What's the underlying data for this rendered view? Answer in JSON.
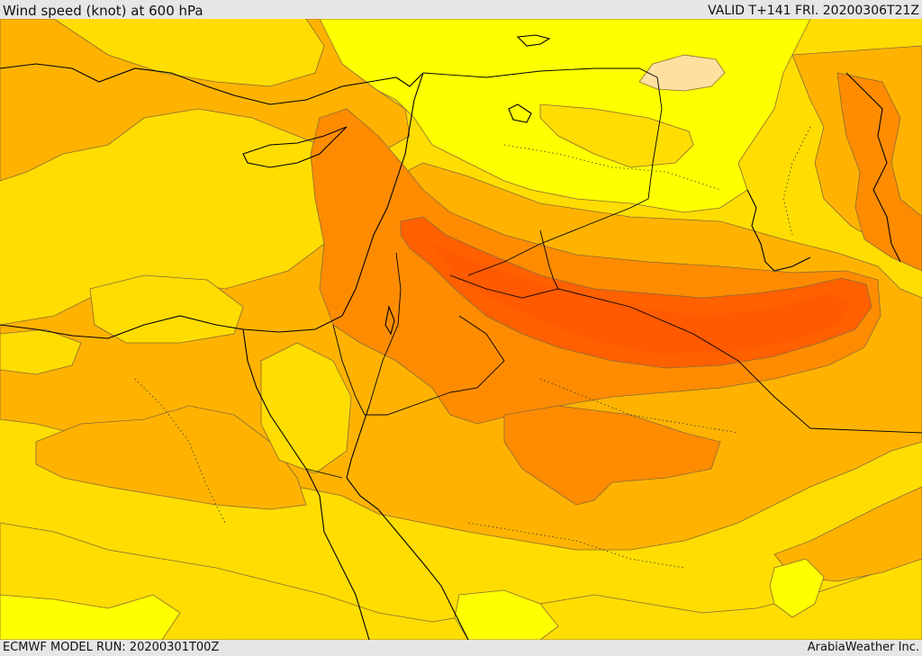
{
  "header": {
    "title": "Wind speed (knot) at 600 hPa",
    "valid": "VALID T+141 FRI. 20200306T21Z"
  },
  "footer": {
    "model_run": "ECMWF MODEL RUN: 20200301T00Z",
    "credit": "ArabiaWeather Inc."
  },
  "map": {
    "variable": "wind speed",
    "unit": "knot",
    "level": "600 hPa",
    "palette": {
      "very_low": "#ffe0a0",
      "low": "#ffff00",
      "moderate": "#ffdd00",
      "elevated": "#ffb300",
      "high": "#ff8c00",
      "very_high": "#ff6000",
      "contour_line": "#8a6a3a",
      "coastline": "#000000"
    }
  }
}
